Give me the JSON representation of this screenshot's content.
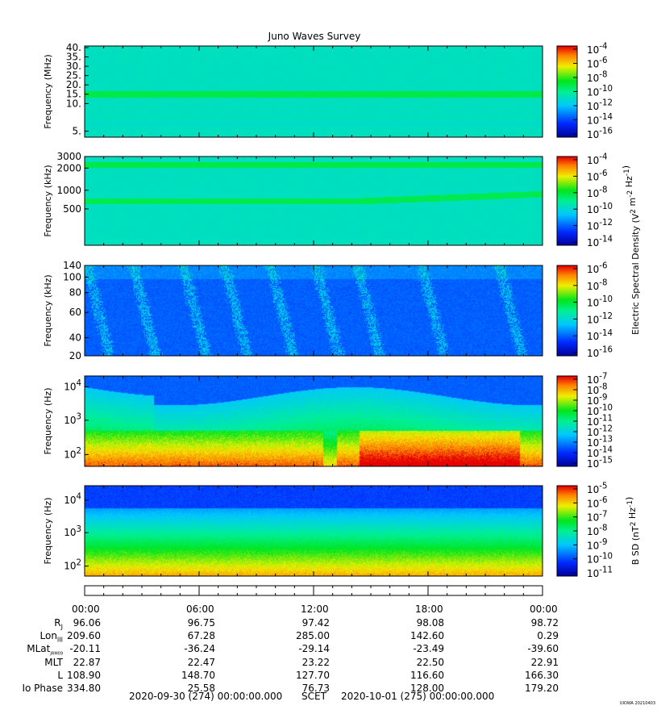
{
  "title": "Juno Waves Survey",
  "panels": [
    {
      "ylabel": "Frequency (MHz)",
      "ticks": [
        "40.",
        "35.",
        "30.",
        "25.",
        "20.",
        "15.",
        "10.",
        "5."
      ],
      "cb_ticks": [
        "10^-4",
        "10^-6",
        "10^-8",
        "10^-10",
        "10^-12",
        "10^-14",
        "10^-16"
      ],
      "cb_label": "",
      "kind": "hfwbr"
    },
    {
      "ylabel": "Frequency (kHz)",
      "ticks": [
        "3000",
        "2000",
        "1000",
        "500"
      ],
      "cb_ticks": [
        "10^-4",
        "10^-6",
        "10^-8",
        "10^-10",
        "10^-12",
        "10^-14"
      ],
      "cb_label": "Electric Spectral Density (V^2 m^-2 Hz^-1)",
      "kind": "hf"
    },
    {
      "ylabel": "Frequency (kHz)",
      "ticks": [
        "140",
        "100",
        "80",
        "60",
        "40",
        "20"
      ],
      "cb_ticks": [
        "10^-6",
        "10^-8",
        "10^-10",
        "10^-12",
        "10^-14",
        "10^-16"
      ],
      "cb_label": "Electric Spectral Density (V^2 m^-2 Hz^-1)",
      "kind": "lfr"
    },
    {
      "ylabel": "Frequency (Hz)",
      "ticks": [
        "10^4",
        "10^3",
        "10^2"
      ],
      "cb_ticks": [
        "10^-7",
        "10^-8",
        "10^-9",
        "10^-10",
        "10^-11",
        "10^-12",
        "10^-13",
        "10^-14",
        "10^-15"
      ],
      "cb_label": "",
      "kind": "lfe"
    },
    {
      "ylabel": "Frequency (Hz)",
      "ticks": [
        "10^4",
        "10^3",
        "10^2"
      ],
      "cb_ticks": [
        "10^-5",
        "10^-6",
        "10^-7",
        "10^-8",
        "10^-9",
        "10^-10",
        "10^-11"
      ],
      "cb_label": "B SD (nT^2 Hz^-1)",
      "kind": "lfb"
    }
  ],
  "time_ticks": [
    "00:00",
    "06:00",
    "12:00",
    "18:00",
    "00:00"
  ],
  "ephemeris": [
    {
      "label": "R",
      "sub": "J",
      "values": [
        "96.06",
        "96.75",
        "97.42",
        "98.08",
        "98.72"
      ]
    },
    {
      "label": "Lon",
      "sub": "III",
      "values": [
        "209.60",
        "67.28",
        "285.00",
        "142.60",
        "0.29"
      ]
    },
    {
      "label": "MLat",
      "sub": "JRM09",
      "values": [
        "-20.11",
        "-36.24",
        "-29.14",
        "-23.49",
        "-39.60"
      ]
    },
    {
      "label": "MLT",
      "sub": "",
      "values": [
        "22.87",
        "22.47",
        "23.22",
        "22.50",
        "22.91"
      ]
    },
    {
      "label": "L",
      "sub": "",
      "values": [
        "108.90",
        "148.70",
        "127.70",
        "116.60",
        "166.30"
      ]
    },
    {
      "label": "Io Phase",
      "sub": "",
      "values": [
        "334.80",
        "25.58",
        "76.73",
        "128.00",
        "179.20"
      ]
    }
  ],
  "footer": {
    "start": "2020-09-30 (274) 00:00:00.000",
    "mid": "SCET",
    "end": "2020-10-01 (275) 00:00:00.000"
  },
  "stamp": "UIOWA 20210403"
}
